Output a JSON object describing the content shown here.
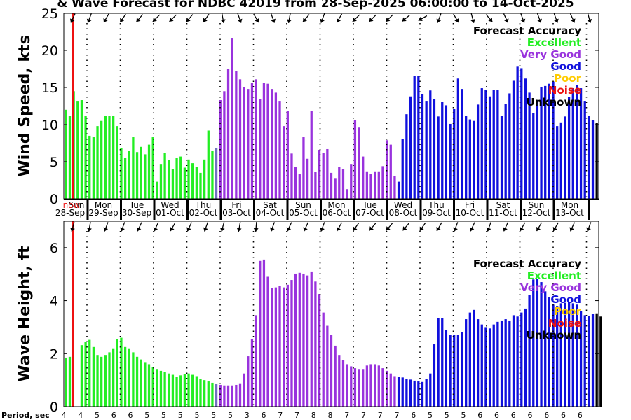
{
  "chart_data": {
    "type": "bar",
    "title": "& Wave Forecast for NDBC 42019 from 28-Sep-2025 06:00:00 to 14-Oct-2025",
    "now_label": "now",
    "period_label": "Period, sec",
    "legend": {
      "title": "Forecast Accuracy",
      "entries": [
        {
          "label": "Excellent",
          "color": "#22ee22"
        },
        {
          "label": "Very Good",
          "color": "#9933dd"
        },
        {
          "label": "Good",
          "color": "#1010dd"
        },
        {
          "label": "Poor",
          "color": "#ffcc00"
        },
        {
          "label": "Noise",
          "color": "#ee1111"
        },
        {
          "label": "Unknown",
          "color": "#000000"
        }
      ]
    },
    "days": [
      {
        "dow": "Sun",
        "date": "28-Sep"
      },
      {
        "dow": "Mon",
        "date": "29-Sep"
      },
      {
        "dow": "Tue",
        "date": "30-Sep"
      },
      {
        "dow": "Wed",
        "date": "01-Oct"
      },
      {
        "dow": "Thu",
        "date": "02-Oct"
      },
      {
        "dow": "Fri",
        "date": "03-Oct"
      },
      {
        "dow": "Sat",
        "date": "04-Oct"
      },
      {
        "dow": "Sun",
        "date": "05-Oct"
      },
      {
        "dow": "Mon",
        "date": "06-Oct"
      },
      {
        "dow": "Tue",
        "date": "07-Oct"
      },
      {
        "dow": "Wed",
        "date": "08-Oct"
      },
      {
        "dow": "Thu",
        "date": "09-Oct"
      },
      {
        "dow": "Fri",
        "date": "10-Oct"
      },
      {
        "dow": "Sat",
        "date": "11-Oct"
      },
      {
        "dow": "Sun",
        "date": "12-Oct"
      },
      {
        "dow": "Mon",
        "date": "13-Oct"
      }
    ],
    "panels": [
      {
        "ylabel": "Wind Speed, kts",
        "ylim": [
          0,
          25
        ],
        "yticks": [
          0,
          5,
          10,
          15,
          20,
          25
        ],
        "values": [
          12,
          11.2,
          14.5,
          13.2,
          13.3,
          11.2,
          8.5,
          8.3,
          9.8,
          10.5,
          11.2,
          11.2,
          11.2,
          9.8,
          6.8,
          5.5,
          6.5,
          8.3,
          6.3,
          7,
          6,
          7.3,
          8.3,
          2.3,
          4.7,
          6.2,
          5.2,
          4,
          5.5,
          5.7,
          4.2,
          5.3,
          4.8,
          4.3,
          3.5,
          5.3,
          9.2,
          6.5,
          6.8,
          13.3,
          14.5,
          17.5,
          21.6,
          17.2,
          16.1,
          15,
          14.8,
          15.6,
          16.1,
          13.4,
          15.6,
          15.5,
          14.8,
          14.3,
          13.2,
          9.8,
          11.8,
          6.1,
          4.3,
          3.3,
          8.3,
          5.4,
          11.8,
          3.6,
          6.6,
          6.2,
          6.7,
          3.5,
          2.8,
          4.3,
          4,
          1.3,
          4.7,
          10.6,
          9.6,
          5.7,
          3.7,
          3.3,
          3.7,
          3.7,
          4.4,
          7.9,
          7.3,
          3.1,
          2.3,
          8.1,
          11.4,
          13.8,
          16.6,
          16.6,
          14.1,
          13.2,
          14.6,
          13.4,
          11.1,
          13.1,
          12.6,
          10.1,
          12.1,
          16.2,
          14.8,
          11.2,
          10.7,
          10.5,
          12.7,
          14.9,
          14.7,
          13.8,
          14.7,
          14.7,
          11.2,
          12.8,
          14.2,
          15.9,
          17.8,
          17.6,
          16.2,
          14.3,
          11.6,
          13.3,
          15,
          15.2,
          15.5,
          15.8,
          9.8,
          10.3,
          11.1,
          13.7,
          14.9,
          15.3,
          14.9,
          13.2,
          11.2,
          10.6,
          10.2
        ]
      },
      {
        "ylabel": "Wave Height, ft",
        "ylim": [
          0,
          7
        ],
        "yticks": [
          0,
          2,
          4,
          6
        ],
        "values": [
          1.85,
          1.88,
          0,
          0,
          2.32,
          2.45,
          2.52,
          2.25,
          1.95,
          1.88,
          1.95,
          2.05,
          2.2,
          2.55,
          2.6,
          2.25,
          2.2,
          2.05,
          1.88,
          1.78,
          1.68,
          1.6,
          1.5,
          1.42,
          1.35,
          1.3,
          1.25,
          1.2,
          1.12,
          1.18,
          1.22,
          1.25,
          1.2,
          1.15,
          1.05,
          1.0,
          0.95,
          0.9,
          0.85,
          0.82,
          0.8,
          0.8,
          0.8,
          0.82,
          0.88,
          1.25,
          1.9,
          2.55,
          3.45,
          5.5,
          5.55,
          4.9,
          4.48,
          4.5,
          4.55,
          4.5,
          4.6,
          4.78,
          5.02,
          5.05,
          5.02,
          4.95,
          5.1,
          4.72,
          4.25,
          3.55,
          3.05,
          2.7,
          2.3,
          1.95,
          1.75,
          1.6,
          1.52,
          1.45,
          1.42,
          1.42,
          1.55,
          1.6,
          1.6,
          1.55,
          1.45,
          1.35,
          1.25,
          1.15,
          1.12,
          1.1,
          1.05,
          1.02,
          0.98,
          0.95,
          0.93,
          1.05,
          1.25,
          2.35,
          3.35,
          3.35,
          2.9,
          2.72,
          2.72,
          2.72,
          2.8,
          3.3,
          3.55,
          3.65,
          3.3,
          3.1,
          3.0,
          2.95,
          3.1,
          3.2,
          3.25,
          3.3,
          3.25,
          3.45,
          3.4,
          3.55,
          3.7,
          4.2,
          4.8,
          4.82,
          4.7,
          4.35,
          4.12,
          3.85,
          3.8,
          3.9,
          3.92,
          3.95,
          3.9,
          3.85,
          3.6,
          3.45,
          3.42,
          3.5,
          3.52,
          3.4
        ]
      }
    ],
    "accuracy_segments": [
      {
        "from": 0,
        "to": 38,
        "category": "Excellent"
      },
      {
        "from": 38,
        "to": 39,
        "category": "Blend"
      },
      {
        "from": 39,
        "to": 63,
        "category": "Very Good"
      },
      {
        "from": 63,
        "to": 84,
        "category": "Very Good"
      },
      {
        "from": 84,
        "to": 134,
        "category": "Good"
      }
    ],
    "colors": {
      "blend": "#7070c0",
      "now_line": "#ee1111",
      "axis": "#000000"
    },
    "wind_dirs": [
      205,
      200,
      210,
      215,
      220,
      225,
      225,
      220,
      215,
      170,
      160,
      150,
      160,
      190,
      220,
      200,
      210,
      225,
      225,
      225,
      230,
      240,
      200,
      150,
      165,
      140,
      155,
      160,
      160,
      160,
      155,
      165
    ],
    "wave_dirs": [
      195,
      190,
      200,
      200,
      205,
      205,
      210,
      205,
      200,
      195,
      190,
      185,
      200,
      205,
      205,
      200,
      210,
      215,
      220,
      220,
      220,
      215,
      210,
      200,
      205,
      200,
      205,
      210,
      210,
      210,
      205,
      200
    ],
    "periods": [
      "4",
      "4",
      "5",
      "6",
      "6",
      "5",
      "5",
      "5",
      "5",
      "5",
      "5",
      "3",
      "6",
      "7",
      "7",
      "8",
      "8",
      "7",
      "7",
      "7",
      "7",
      "6",
      "5",
      "5",
      "5",
      "6",
      "6",
      "6",
      "6",
      "6",
      "6",
      "6"
    ]
  }
}
